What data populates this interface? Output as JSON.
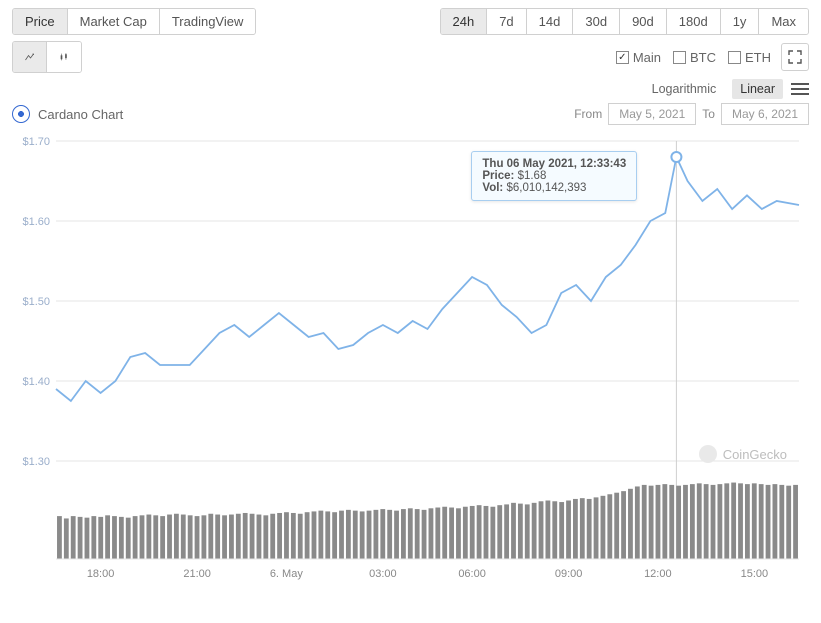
{
  "tabs": {
    "price": "Price",
    "marketcap": "Market Cap",
    "tradingview": "TradingView"
  },
  "ranges": {
    "r24h": "24h",
    "r7d": "7d",
    "r14d": "14d",
    "r30d": "30d",
    "r90d": "90d",
    "r180d": "180d",
    "r1y": "1y",
    "rmax": "Max"
  },
  "compare": {
    "main": "Main",
    "btc": "BTC",
    "eth": "ETH"
  },
  "scale": {
    "log": "Logarithmic",
    "linear": "Linear"
  },
  "title": "Cardano Chart",
  "from_label": "From",
  "to_label": "To",
  "from_date": "May 5, 2021",
  "to_date": "May 6, 2021",
  "watermark": "CoinGecko",
  "tooltip": {
    "datetime": "Thu 06 May 2021, 12:33:43",
    "price_label": "Price:",
    "price": "$1.68",
    "vol_label": "Vol:",
    "vol": "$6,010,142,393"
  },
  "chart": {
    "type": "line+volume",
    "line_color": "#7fb3e8",
    "marker_color": "#7fb3e8",
    "marker_fill": "#ffffff",
    "grid_color": "#e6e6e6",
    "axis_color": "#e6e6e6",
    "y_label_color": "#9aaecb",
    "x_label_color": "#888888",
    "volume_color": "#8a8a8a",
    "background_color": "#ffffff",
    "crosshair_color": "#cfcfcf",
    "ylim": [
      1.3,
      1.7
    ],
    "y_ticks": [
      1.3,
      1.4,
      1.5,
      1.6,
      1.7
    ],
    "y_tick_labels": [
      "$1.30",
      "$1.40",
      "$1.50",
      "$1.60",
      "$1.70"
    ],
    "x_ticks": [
      0.06,
      0.19,
      0.31,
      0.44,
      0.56,
      0.69,
      0.81,
      0.94
    ],
    "x_tick_labels": [
      "18:00",
      "21:00",
      "6. May",
      "03:00",
      "06:00",
      "09:00",
      "12:00",
      "15:00"
    ],
    "crosshair_x": 0.835,
    "series": [
      [
        0.0,
        1.39
      ],
      [
        0.02,
        1.375
      ],
      [
        0.04,
        1.4
      ],
      [
        0.06,
        1.385
      ],
      [
        0.08,
        1.4
      ],
      [
        0.1,
        1.43
      ],
      [
        0.12,
        1.435
      ],
      [
        0.14,
        1.42
      ],
      [
        0.16,
        1.42
      ],
      [
        0.18,
        1.42
      ],
      [
        0.2,
        1.44
      ],
      [
        0.22,
        1.46
      ],
      [
        0.24,
        1.47
      ],
      [
        0.26,
        1.455
      ],
      [
        0.28,
        1.47
      ],
      [
        0.3,
        1.485
      ],
      [
        0.32,
        1.47
      ],
      [
        0.34,
        1.455
      ],
      [
        0.36,
        1.46
      ],
      [
        0.38,
        1.44
      ],
      [
        0.4,
        1.445
      ],
      [
        0.42,
        1.46
      ],
      [
        0.44,
        1.47
      ],
      [
        0.46,
        1.46
      ],
      [
        0.48,
        1.475
      ],
      [
        0.5,
        1.465
      ],
      [
        0.52,
        1.49
      ],
      [
        0.54,
        1.51
      ],
      [
        0.56,
        1.53
      ],
      [
        0.58,
        1.52
      ],
      [
        0.6,
        1.495
      ],
      [
        0.62,
        1.48
      ],
      [
        0.64,
        1.46
      ],
      [
        0.66,
        1.47
      ],
      [
        0.68,
        1.51
      ],
      [
        0.7,
        1.52
      ],
      [
        0.72,
        1.5
      ],
      [
        0.74,
        1.53
      ],
      [
        0.76,
        1.545
      ],
      [
        0.78,
        1.57
      ],
      [
        0.8,
        1.6
      ],
      [
        0.82,
        1.61
      ],
      [
        0.835,
        1.68
      ],
      [
        0.85,
        1.65
      ],
      [
        0.87,
        1.625
      ],
      [
        0.89,
        1.64
      ],
      [
        0.91,
        1.615
      ],
      [
        0.93,
        1.632
      ],
      [
        0.95,
        1.615
      ],
      [
        0.97,
        1.625
      ],
      [
        1.0,
        1.62
      ]
    ],
    "volume": [
      0.55,
      0.52,
      0.55,
      0.54,
      0.53,
      0.55,
      0.54,
      0.56,
      0.55,
      0.54,
      0.53,
      0.55,
      0.56,
      0.57,
      0.56,
      0.55,
      0.57,
      0.58,
      0.57,
      0.56,
      0.55,
      0.56,
      0.58,
      0.57,
      0.56,
      0.57,
      0.58,
      0.59,
      0.58,
      0.57,
      0.56,
      0.58,
      0.59,
      0.6,
      0.59,
      0.58,
      0.6,
      0.61,
      0.62,
      0.61,
      0.6,
      0.62,
      0.63,
      0.62,
      0.61,
      0.62,
      0.63,
      0.64,
      0.63,
      0.62,
      0.64,
      0.65,
      0.64,
      0.63,
      0.65,
      0.66,
      0.67,
      0.66,
      0.65,
      0.67,
      0.68,
      0.69,
      0.68,
      0.67,
      0.69,
      0.7,
      0.72,
      0.71,
      0.7,
      0.72,
      0.74,
      0.75,
      0.74,
      0.73,
      0.75,
      0.77,
      0.78,
      0.77,
      0.79,
      0.81,
      0.83,
      0.85,
      0.87,
      0.9,
      0.93,
      0.95,
      0.94,
      0.95,
      0.96,
      0.95,
      0.94,
      0.95,
      0.96,
      0.97,
      0.96,
      0.95,
      0.96,
      0.97,
      0.98,
      0.97,
      0.96,
      0.97,
      0.96,
      0.95,
      0.96,
      0.95,
      0.94,
      0.95
    ]
  }
}
